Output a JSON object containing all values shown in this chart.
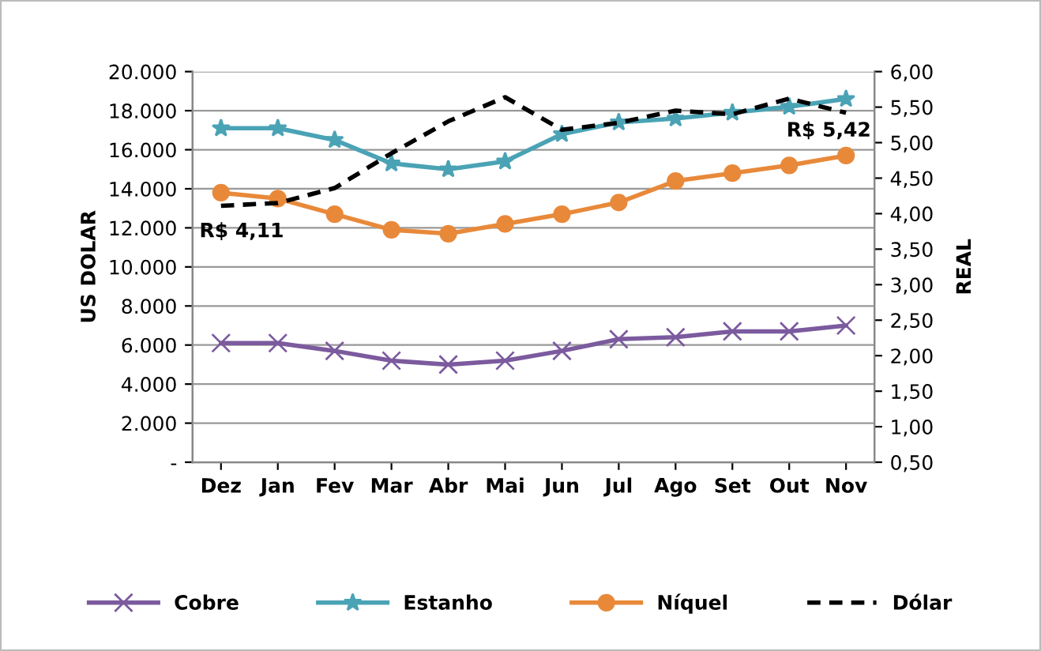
{
  "chart_data": {
    "type": "line",
    "categories": [
      "Dez",
      "Jan",
      "Fev",
      "Mar",
      "Abr",
      "Mai",
      "Jun",
      "Jul",
      "Ago",
      "Set",
      "Out",
      "Nov"
    ],
    "ylabel": "US DOLAR",
    "y2label": "REAL",
    "series": [
      {
        "name": "Cobre",
        "color": "#7b5a9e",
        "marker": "cross",
        "values": [
          6100,
          6100,
          5700,
          5200,
          5000,
          5200,
          5700,
          6300,
          6400,
          6700,
          6700,
          7000
        ]
      },
      {
        "name": "Estanho",
        "color": "#4aa3b5",
        "marker": "star",
        "values": [
          17100,
          17100,
          16500,
          15300,
          15000,
          15400,
          16800,
          17400,
          17600,
          17900,
          18200,
          18600
        ]
      },
      {
        "name": "Níquel",
        "color": "#e8893a",
        "marker": "circle",
        "values": [
          13800,
          13500,
          12700,
          11900,
          11700,
          12200,
          12700,
          13300,
          14400,
          14800,
          15200,
          15700
        ]
      },
      {
        "name": "Dólar",
        "color": "#000000",
        "marker": "none",
        "line_style": "dashed",
        "axis": "y2",
        "values": [
          4.11,
          4.15,
          4.36,
          4.85,
          5.3,
          5.64,
          5.18,
          5.28,
          5.45,
          5.4,
          5.62,
          5.42
        ]
      }
    ],
    "ylim": [
      0,
      20000
    ],
    "yticks": [
      {
        "value": 0,
        "label": "-"
      },
      {
        "value": 2000,
        "label": "2.000"
      },
      {
        "value": 4000,
        "label": "4.000"
      },
      {
        "value": 6000,
        "label": "6.000"
      },
      {
        "value": 8000,
        "label": "8.000"
      },
      {
        "value": 10000,
        "label": "10.000"
      },
      {
        "value": 12000,
        "label": "12.000"
      },
      {
        "value": 14000,
        "label": "14.000"
      },
      {
        "value": 16000,
        "label": "16.000"
      },
      {
        "value": 18000,
        "label": "18.000"
      },
      {
        "value": 20000,
        "label": "20.000"
      }
    ],
    "y2lim": [
      0.5,
      6.0
    ],
    "y2ticks": [
      {
        "value": 0.5,
        "label": "0,50"
      },
      {
        "value": 1.0,
        "label": "1,00"
      },
      {
        "value": 1.5,
        "label": "1,50"
      },
      {
        "value": 2.0,
        "label": "2,00"
      },
      {
        "value": 2.5,
        "label": "2,50"
      },
      {
        "value": 3.0,
        "label": "3,00"
      },
      {
        "value": 3.5,
        "label": "3,50"
      },
      {
        "value": 4.0,
        "label": "4,00"
      },
      {
        "value": 4.5,
        "label": "4,50"
      },
      {
        "value": 5.0,
        "label": "5,00"
      },
      {
        "value": 5.5,
        "label": "5,50"
      },
      {
        "value": 6.0,
        "label": "6,00"
      }
    ],
    "annotations": [
      "R$ 4,11",
      "R$ 5,42"
    ],
    "grid": "y",
    "legend": "bottom"
  }
}
